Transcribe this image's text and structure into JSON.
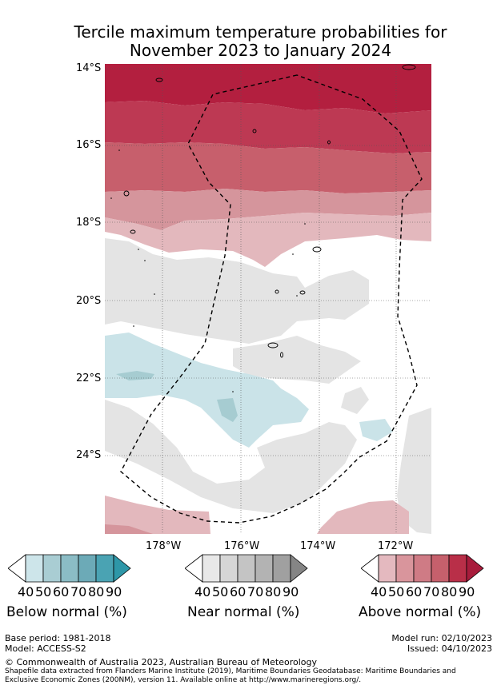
{
  "title_line1": "Tercile maximum temperature probabilities for",
  "title_line2": "November 2023 to January 2024",
  "lat_labels": [
    "14°S",
    "16°S",
    "18°S",
    "20°S",
    "22°S",
    "24°S"
  ],
  "lon_labels": [
    "178°W",
    "176°W",
    "174°W",
    "172°W"
  ],
  "colorbars": [
    {
      "name": "Below normal (%)",
      "ticks": [
        "40",
        "50",
        "60",
        "70",
        "80",
        "90"
      ],
      "colors": [
        "#cde5ea",
        "#a9cdd3",
        "#8bbcc5",
        "#6caab7",
        "#4aa3b3",
        "#2e97a8"
      ]
    },
    {
      "name": "Near normal (%)",
      "ticks": [
        "40",
        "50",
        "60",
        "70",
        "80",
        "90"
      ],
      "colors": [
        "#e8e8e8",
        "#d6d6d6",
        "#c4c4c4",
        "#b3b3b3",
        "#a0a0a0",
        "#858585"
      ]
    },
    {
      "name": "Above normal (%)",
      "ticks": [
        "40",
        "50",
        "60",
        "70",
        "80",
        "90"
      ],
      "colors": [
        "#e4b9bf",
        "#d9959c",
        "#cf7b85",
        "#c6606c",
        "#b92f48",
        "#a81c3c"
      ]
    }
  ],
  "base_period": "Base period: 1981-2018",
  "model": "Model: ACCESS-S2",
  "model_run": "Model run: 02/10/2023",
  "issued": "Issued: 04/10/2023",
  "copyright": "© Commonwealth of Australia 2023, Australian Bureau of Meteorology",
  "shapefile_line1": "Shapefile data extracted from Flanders Marine Institute (2019), Maritime Boundaries Geodatabase: Maritime Boundaries and",
  "shapefile_line2": "Exclusive Economic Zones (200NM), version 11. Available online at http://www.marineregions.org/."
}
